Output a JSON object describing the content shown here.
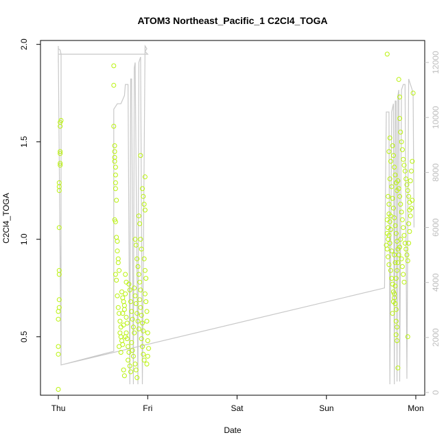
{
  "chart_data": {
    "type": "scatter",
    "title": "ATOM3 Northeast_Pacific_1 C2Cl4_TOGA",
    "xlabel": "Date",
    "ylabel": "C2Cl4_TOGA",
    "x_ticks": [
      "Thu",
      "Fri",
      "Sat",
      "Sun",
      "Mon"
    ],
    "x_tick_values": [
      0,
      1,
      2,
      3,
      4
    ],
    "xlim": [
      -0.2,
      4.1
    ],
    "ylim": [
      0.2,
      2.02
    ],
    "y_ticks": [
      0.5,
      1.0,
      1.5,
      2.0
    ],
    "y_tick_labels": [
      "0.5",
      "1.0",
      "1.5",
      "2.0"
    ],
    "y2_lim": [
      -100,
      12800
    ],
    "y2_ticks": [
      0,
      2000,
      4000,
      6000,
      8000,
      10000,
      12000
    ],
    "grid": false,
    "legend": "none",
    "colors": {
      "points": "#b9f20a",
      "altitude_line": "#c8c8c8",
      "axes": "#000000",
      "right_axis": "#bdbdbd"
    },
    "series": [
      {
        "type": "scatter",
        "axis": "left",
        "points": [
          [
            0.0,
            0.23
          ],
          [
            0.0,
            0.41
          ],
          [
            0.0,
            0.45
          ],
          [
            0.0,
            0.59
          ],
          [
            0.0,
            0.63
          ],
          [
            0.01,
            0.65
          ],
          [
            0.01,
            0.69
          ],
          [
            0.01,
            0.82
          ],
          [
            0.01,
            0.84
          ],
          [
            0.01,
            1.06
          ],
          [
            0.01,
            1.25
          ],
          [
            0.01,
            1.27
          ],
          [
            0.01,
            1.29
          ],
          [
            0.02,
            1.38
          ],
          [
            0.02,
            1.39
          ],
          [
            0.02,
            1.44
          ],
          [
            0.02,
            1.45
          ],
          [
            0.02,
            1.58
          ],
          [
            0.02,
            1.6
          ],
          [
            0.03,
            1.61
          ],
          [
            0.62,
            1.89
          ],
          [
            0.62,
            1.79
          ],
          [
            0.62,
            1.58
          ],
          [
            0.63,
            1.48
          ],
          [
            0.63,
            1.45
          ],
          [
            0.63,
            1.42
          ],
          [
            0.63,
            1.4
          ],
          [
            0.64,
            1.37
          ],
          [
            0.64,
            1.33
          ],
          [
            0.64,
            1.29
          ],
          [
            0.64,
            1.26
          ],
          [
            0.65,
            1.2
          ],
          [
            0.63,
            1.1
          ],
          [
            0.64,
            1.09
          ],
          [
            0.65,
            1.01
          ],
          [
            0.66,
            0.99
          ],
          [
            0.66,
            0.94
          ],
          [
            0.67,
            0.9
          ],
          [
            0.67,
            0.88
          ],
          [
            0.68,
            0.84
          ],
          [
            0.64,
            0.82
          ],
          [
            0.65,
            0.79
          ],
          [
            0.66,
            0.71
          ],
          [
            0.67,
            0.65
          ],
          [
            0.68,
            0.62
          ],
          [
            0.69,
            0.58
          ],
          [
            0.7,
            0.55
          ],
          [
            0.69,
            0.52
          ],
          [
            0.7,
            0.5
          ],
          [
            0.71,
            0.48
          ],
          [
            0.72,
            0.46
          ],
          [
            0.68,
            0.45
          ],
          [
            0.7,
            0.42
          ],
          [
            0.72,
            0.7
          ],
          [
            0.73,
            0.68
          ],
          [
            0.74,
            0.66
          ],
          [
            0.74,
            0.64
          ],
          [
            0.75,
            0.72
          ],
          [
            0.76,
            0.6
          ],
          [
            0.77,
            0.57
          ],
          [
            0.76,
            0.52
          ],
          [
            0.77,
            0.49
          ],
          [
            0.78,
            0.45
          ],
          [
            0.79,
            0.42
          ],
          [
            0.73,
            0.33
          ],
          [
            0.74,
            0.3
          ],
          [
            0.78,
            0.38
          ],
          [
            0.8,
            0.35
          ],
          [
            0.81,
            0.32
          ],
          [
            0.79,
            0.77
          ],
          [
            0.8,
            0.74
          ],
          [
            0.81,
            0.68
          ],
          [
            0.82,
            0.63
          ],
          [
            0.83,
            0.59
          ],
          [
            0.84,
            0.55
          ],
          [
            0.85,
            0.52
          ],
          [
            0.82,
            0.47
          ],
          [
            0.83,
            0.43
          ],
          [
            0.84,
            0.4
          ],
          [
            0.86,
            0.36
          ],
          [
            0.87,
            0.33
          ],
          [
            0.88,
            0.29
          ],
          [
            0.85,
            0.75
          ],
          [
            0.86,
            0.71
          ],
          [
            0.87,
            0.67
          ],
          [
            0.88,
            0.62
          ],
          [
            0.89,
            0.58
          ],
          [
            0.9,
            0.54
          ],
          [
            0.88,
            0.9
          ],
          [
            0.89,
            0.86
          ],
          [
            0.9,
            0.82
          ],
          [
            0.91,
            0.78
          ],
          [
            0.92,
            0.74
          ],
          [
            0.91,
            0.69
          ],
          [
            0.92,
            0.65
          ],
          [
            0.93,
            0.61
          ],
          [
            0.94,
            0.57
          ],
          [
            0.95,
            0.53
          ],
          [
            0.93,
            0.49
          ],
          [
            0.94,
            0.45
          ],
          [
            0.95,
            0.41
          ],
          [
            0.96,
            0.38
          ],
          [
            0.9,
            1.12
          ],
          [
            0.91,
            1.08
          ],
          [
            0.92,
            1.0
          ],
          [
            0.93,
            0.95
          ],
          [
            0.92,
            1.43
          ],
          [
            0.94,
            1.26
          ],
          [
            0.95,
            1.22
          ],
          [
            0.96,
            1.18
          ],
          [
            0.97,
            1.32
          ],
          [
            0.97,
            1.15
          ],
          [
            0.96,
            0.9
          ],
          [
            0.97,
            0.84
          ],
          [
            0.98,
            0.8
          ],
          [
            0.97,
            0.72
          ],
          [
            0.98,
            0.68
          ],
          [
            0.99,
            0.63
          ],
          [
            0.99,
            0.58
          ],
          [
            1.0,
            0.52
          ],
          [
            1.0,
            0.48
          ],
          [
            1.01,
            0.44
          ],
          [
            1.0,
            0.4
          ],
          [
            0.99,
            0.36
          ],
          [
            0.86,
            1.0
          ],
          [
            0.87,
            0.97
          ],
          [
            0.75,
            0.82
          ],
          [
            0.76,
            0.78
          ],
          [
            0.71,
            0.73
          ],
          [
            0.72,
            0.62
          ],
          [
            0.73,
            0.56
          ],
          [
            0.75,
            0.5
          ],
          [
            3.68,
            1.95
          ],
          [
            3.71,
            1.52
          ],
          [
            3.7,
            1.45
          ],
          [
            3.72,
            1.4
          ],
          [
            3.71,
            1.31
          ],
          [
            3.73,
            1.27
          ],
          [
            3.69,
            1.22
          ],
          [
            3.7,
            1.18
          ],
          [
            3.72,
            1.12
          ],
          [
            3.68,
            1.1
          ],
          [
            3.69,
            1.06
          ],
          [
            3.7,
            1.02
          ],
          [
            3.71,
            0.98
          ],
          [
            3.68,
            0.95
          ],
          [
            3.69,
            0.91
          ],
          [
            3.7,
            0.87
          ],
          [
            3.72,
            0.84
          ],
          [
            3.73,
            0.8
          ],
          [
            3.74,
            0.77
          ],
          [
            3.75,
            0.73
          ],
          [
            3.76,
            0.7
          ],
          [
            3.77,
            0.67
          ],
          [
            3.78,
            0.64
          ],
          [
            3.74,
            1.48
          ],
          [
            3.75,
            1.43
          ],
          [
            3.76,
            1.37
          ],
          [
            3.77,
            1.33
          ],
          [
            3.78,
            1.29
          ],
          [
            3.79,
            1.25
          ],
          [
            3.74,
            1.21
          ],
          [
            3.75,
            1.16
          ],
          [
            3.76,
            1.11
          ],
          [
            3.77,
            1.07
          ],
          [
            3.78,
            1.03
          ],
          [
            3.79,
            0.99
          ],
          [
            3.8,
            0.95
          ],
          [
            3.76,
            0.92
          ],
          [
            3.77,
            0.88
          ],
          [
            3.78,
            0.58
          ],
          [
            3.79,
            0.55
          ],
          [
            3.78,
            0.51
          ],
          [
            3.79,
            0.48
          ],
          [
            3.8,
            0.34
          ],
          [
            3.81,
            1.82
          ],
          [
            3.82,
            1.73
          ],
          [
            3.82,
            1.62
          ],
          [
            3.83,
            1.55
          ],
          [
            3.84,
            1.5
          ],
          [
            3.85,
            1.46
          ],
          [
            3.86,
            1.41
          ],
          [
            3.87,
            1.38
          ],
          [
            3.88,
            1.35
          ],
          [
            3.89,
            1.31
          ],
          [
            3.9,
            1.28
          ],
          [
            3.91,
            1.25
          ],
          [
            3.92,
            1.22
          ],
          [
            3.93,
            1.19
          ],
          [
            3.8,
            1.3
          ],
          [
            3.81,
            1.26
          ],
          [
            3.82,
            1.22
          ],
          [
            3.83,
            1.18
          ],
          [
            3.84,
            1.14
          ],
          [
            3.85,
            1.1
          ],
          [
            3.86,
            1.06
          ],
          [
            3.87,
            1.02
          ],
          [
            3.88,
            0.98
          ],
          [
            3.89,
            0.95
          ],
          [
            3.9,
            0.92
          ],
          [
            3.91,
            0.89
          ],
          [
            3.92,
            1.08
          ],
          [
            3.93,
            1.04
          ],
          [
            3.94,
            1.12
          ],
          [
            3.95,
            1.16
          ],
          [
            3.96,
            1.2
          ],
          [
            3.97,
            1.75
          ],
          [
            3.96,
            1.4
          ],
          [
            3.95,
            1.35
          ],
          [
            3.94,
            1.3
          ],
          [
            3.93,
            1.15
          ],
          [
            3.92,
            0.98
          ],
          [
            3.91,
            0.5
          ],
          [
            3.84,
            0.9
          ],
          [
            3.85,
            0.86
          ],
          [
            3.86,
            0.82
          ],
          [
            3.87,
            0.78
          ],
          [
            3.83,
            1.0
          ],
          [
            3.82,
            0.96
          ],
          [
            3.81,
            0.92
          ],
          [
            3.8,
            0.88
          ],
          [
            3.79,
            0.84
          ],
          [
            3.78,
            0.8
          ],
          [
            3.77,
            0.76
          ],
          [
            3.76,
            0.72
          ],
          [
            3.75,
            0.68
          ],
          [
            3.74,
            0.62
          ],
          [
            3.73,
            0.94
          ],
          [
            3.72,
            1.05
          ],
          [
            3.71,
            1.09
          ],
          [
            3.7,
            1.13
          ],
          [
            3.69,
            1.0
          ],
          [
            3.68,
            1.03
          ],
          [
            3.67,
            0.97
          ]
        ]
      },
      {
        "type": "line",
        "axis": "right",
        "points": [
          [
            0.0,
            12000
          ],
          [
            0.0,
            12600
          ],
          [
            0.0,
            12500
          ],
          [
            0.02,
            12450
          ],
          [
            0.03,
            12300
          ],
          [
            0.03,
            10000
          ],
          [
            0.03,
            1000
          ],
          [
            0.62,
            1500
          ],
          [
            0.62,
            10300
          ],
          [
            0.66,
            10500
          ],
          [
            0.7,
            10500
          ],
          [
            0.74,
            10800
          ],
          [
            0.75,
            11200
          ],
          [
            0.78,
            11200
          ],
          [
            0.8,
            300
          ],
          [
            0.81,
            11400
          ],
          [
            0.82,
            11400
          ],
          [
            0.84,
            300
          ],
          [
            0.85,
            11800
          ],
          [
            0.86,
            12000
          ],
          [
            0.89,
            300
          ],
          [
            0.9,
            12000
          ],
          [
            0.92,
            12200
          ],
          [
            0.94,
            300
          ],
          [
            0.97,
            12600
          ],
          [
            0.99,
            12500
          ],
          [
            0.97,
            12400
          ],
          [
            1.0,
            12300
          ],
          [
            0.22,
            12300
          ],
          [
            0.0,
            12300
          ],
          [
            0.03,
            1000
          ],
          [
            3.65,
            3800
          ],
          [
            3.67,
            10200
          ],
          [
            3.7,
            10200
          ],
          [
            3.71,
            300
          ],
          [
            3.73,
            10200
          ],
          [
            3.75,
            10500
          ],
          [
            3.76,
            300
          ],
          [
            3.77,
            10600
          ],
          [
            3.78,
            10600
          ],
          [
            3.79,
            400
          ],
          [
            3.8,
            10800
          ],
          [
            3.81,
            11000
          ],
          [
            3.82,
            400
          ],
          [
            3.84,
            11000
          ],
          [
            3.86,
            11200
          ],
          [
            3.88,
            11200
          ],
          [
            3.9,
            500
          ],
          [
            3.92,
            11400
          ],
          [
            3.94,
            11200
          ],
          [
            3.96,
            11000
          ],
          [
            3.97,
            10800
          ],
          [
            3.98,
            6000
          ]
        ]
      }
    ]
  }
}
